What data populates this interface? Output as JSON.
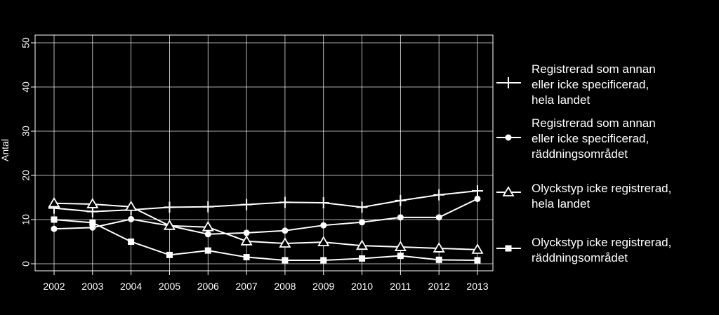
{
  "chart_data": {
    "type": "line",
    "title": "",
    "xlabel": "",
    "ylabel": "Antal",
    "ylim": [
      0,
      50
    ],
    "yticks": [
      0,
      10,
      20,
      30,
      40,
      50
    ],
    "grid": true,
    "legend_position": "right",
    "x": [
      "2002",
      "2003",
      "2004",
      "2005",
      "2006",
      "2007",
      "2008",
      "2009",
      "2010",
      "2011",
      "2012",
      "2013"
    ],
    "series": [
      {
        "name": "Registrerad som annan eller icke specificerad, hela landet",
        "legend_lines": [
          "Registrerad som annan",
          "eller icke specificerad,",
          "hela landet"
        ],
        "marker": "plus",
        "values": [
          12.6,
          11.8,
          12.2,
          12.8,
          12.9,
          13.4,
          13.9,
          13.8,
          12.8,
          14.3,
          15.6,
          16.5
        ]
      },
      {
        "name": "Registrerad som annan eller icke specificerad, räddningsområdet",
        "legend_lines": [
          "Registrerad som annan",
          "eller icke specificerad,",
          "räddningsområdet"
        ],
        "marker": "circle",
        "values": [
          7.9,
          8.2,
          10.1,
          8.6,
          6.7,
          7.0,
          7.5,
          8.7,
          9.4,
          10.5,
          10.5,
          14.7
        ]
      },
      {
        "name": "Olyckstyp icke registrerad, hela landet",
        "legend_lines": [
          "Olyckstyp icke registrerad,",
          "hela landet"
        ],
        "marker": "triangle",
        "values": [
          13.7,
          13.5,
          12.9,
          8.6,
          8.3,
          5.1,
          4.6,
          4.9,
          4.1,
          3.8,
          3.5,
          3.2
        ]
      },
      {
        "name": "Olyckstyp icke registrerad, räddningsområdet",
        "legend_lines": [
          "Olyckstyp icke registrerad,",
          "räddningsområdet"
        ],
        "marker": "square",
        "values": [
          10.0,
          9.3,
          5.0,
          2.0,
          3.0,
          1.5,
          0.8,
          0.8,
          1.2,
          1.8,
          0.9,
          0.8
        ]
      }
    ]
  }
}
